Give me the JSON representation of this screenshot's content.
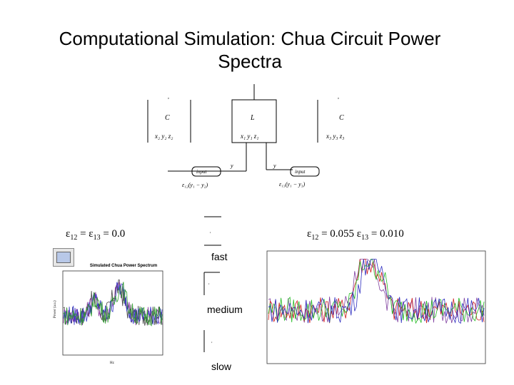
{
  "slide": {
    "title": "Computational Simulation: Chua Circuit Power Spectra",
    "left_condition": {
      "e12_symbol": "ε",
      "e12_sub": "12",
      "e12_value": "= ",
      "e13_symbol": "ε",
      "e13_sub": "13",
      "e13_value": "= 0.0"
    },
    "right_condition": {
      "e12_symbol": "ε",
      "e12_sub": "12",
      "e12_value": "= 0.055  ",
      "e13_symbol": "ε",
      "e13_sub": "13",
      "e13_value": "= 0.010"
    },
    "speed_labels": {
      "fast": "fast",
      "medium": "medium",
      "slow": "slow"
    }
  },
  "diagram": {
    "left_block": {
      "letter": "C",
      "states": "x₂  y₂  z₂"
    },
    "middle_block": {
      "letter": "L",
      "states": "x₁  y₁  z₁"
    },
    "right_block": {
      "letter": "C",
      "states": "x₃  y₃  z₃"
    },
    "coupler_left": {
      "label": "input",
      "formula": "ε₁₂(y₁ − y₂)"
    },
    "coupler_right": {
      "label": "input",
      "formula": "ε₁₃(y₁ − y₃)"
    },
    "wire_labels": {
      "left": "y",
      "right": "y"
    }
  },
  "left_plot": {
    "title": "Simulated Chua Power Spectrum",
    "ylabel": "Power (a.u.)",
    "xlabel": "Hz",
    "colors": {
      "blue": "#3a3acc",
      "green": "#2a9a2a",
      "purple": "#8a3aa0",
      "gray": "#404040"
    }
  },
  "right_plot": {
    "colors": {
      "blue": "#3030c0",
      "green": "#22bb22",
      "red": "#d02020",
      "purple": "#8040a0"
    }
  }
}
